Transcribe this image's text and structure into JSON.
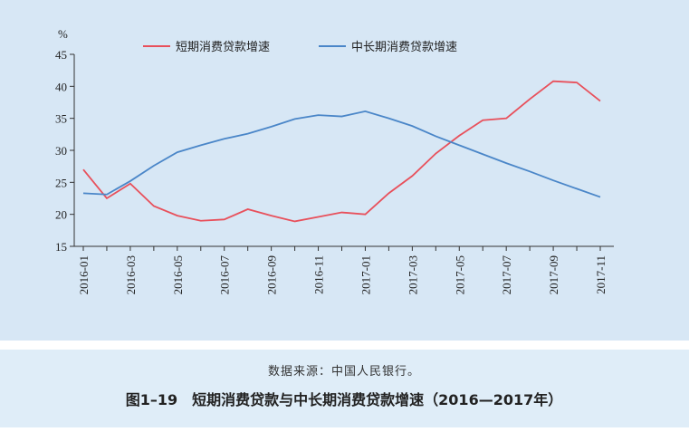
{
  "chart_data": {
    "type": "line",
    "y_unit": "%",
    "categories": [
      "2016-01",
      null,
      "2016-03",
      null,
      "2016-05",
      null,
      "2016-07",
      null,
      "2016-09",
      null,
      "2016-11",
      null,
      "2017-01",
      null,
      "2017-03",
      null,
      "2017-05",
      null,
      "2017-07",
      null,
      "2017-09",
      null,
      "2017-11"
    ],
    "series": [
      {
        "name": "短期消费贷款增速",
        "color": "#e8505b",
        "values": [
          27,
          22.5,
          24.8,
          21.3,
          19.8,
          19,
          19.2,
          20.8,
          19.8,
          18.9,
          19.6,
          20.3,
          20,
          23.3,
          26,
          29.5,
          32.3,
          34.7,
          35,
          38,
          40.8,
          40.6,
          37.7
        ]
      },
      {
        "name": "中长期消费贷款增速",
        "color": "#4a86c8",
        "values": [
          23.3,
          23.1,
          25.2,
          27.6,
          29.7,
          30.8,
          31.8,
          32.6,
          33.7,
          34.9,
          35.5,
          35.3,
          36.1,
          35,
          33.8,
          32.2,
          30.8,
          29.4,
          28,
          26.7,
          25.3,
          24,
          22.7
        ]
      }
    ],
    "ylim": [
      15,
      45
    ],
    "yticks": [
      15,
      20,
      25,
      30,
      35,
      40,
      45
    ],
    "legend": "top"
  },
  "footer": {
    "source": "数据来源：中国人民银行。",
    "caption": "图1–19　短期消费贷款与中长期消费贷款增速（2016—2017年）"
  }
}
